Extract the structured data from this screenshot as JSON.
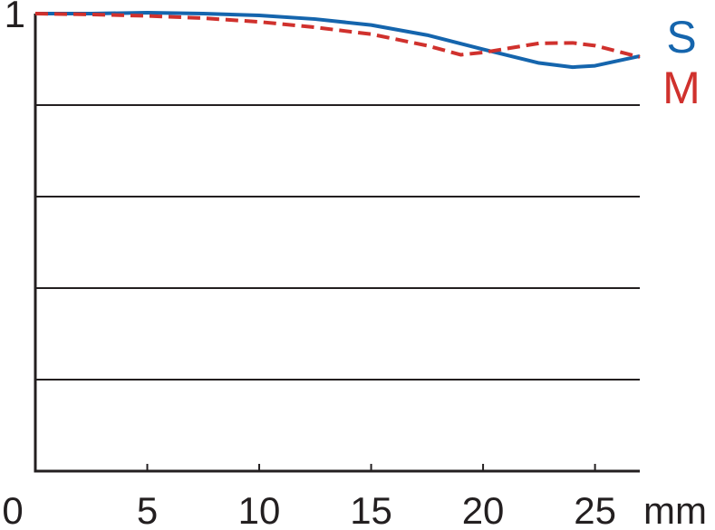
{
  "chart_data": {
    "type": "line",
    "x_unit": "mm",
    "xlim": [
      0,
      27
    ],
    "xticks": [
      0,
      5,
      10,
      15,
      20,
      25
    ],
    "ylim": [
      0,
      1
    ],
    "yticks": [
      1
    ],
    "ygrid": [
      0.2,
      0.4,
      0.6,
      0.8
    ],
    "series": [
      {
        "name": "S",
        "color": "#1565ad",
        "dash": false,
        "x": [
          0,
          2.5,
          5,
          7.5,
          10,
          12.5,
          15,
          17.5,
          20,
          22.5,
          24,
          25,
          27
        ],
        "values": [
          1.0,
          1.0,
          1.002,
          1.0,
          0.996,
          0.988,
          0.975,
          0.953,
          0.922,
          0.892,
          0.883,
          0.886,
          0.907
        ]
      },
      {
        "name": "M",
        "color": "#d0312d",
        "dash": true,
        "x": [
          0,
          2.5,
          5,
          7.5,
          10,
          12.5,
          15,
          17.5,
          19,
          20,
          22.5,
          24,
          25,
          27
        ],
        "values": [
          1.0,
          0.998,
          0.995,
          0.99,
          0.982,
          0.97,
          0.955,
          0.93,
          0.91,
          0.915,
          0.935,
          0.936,
          0.93,
          0.905
        ]
      }
    ]
  }
}
